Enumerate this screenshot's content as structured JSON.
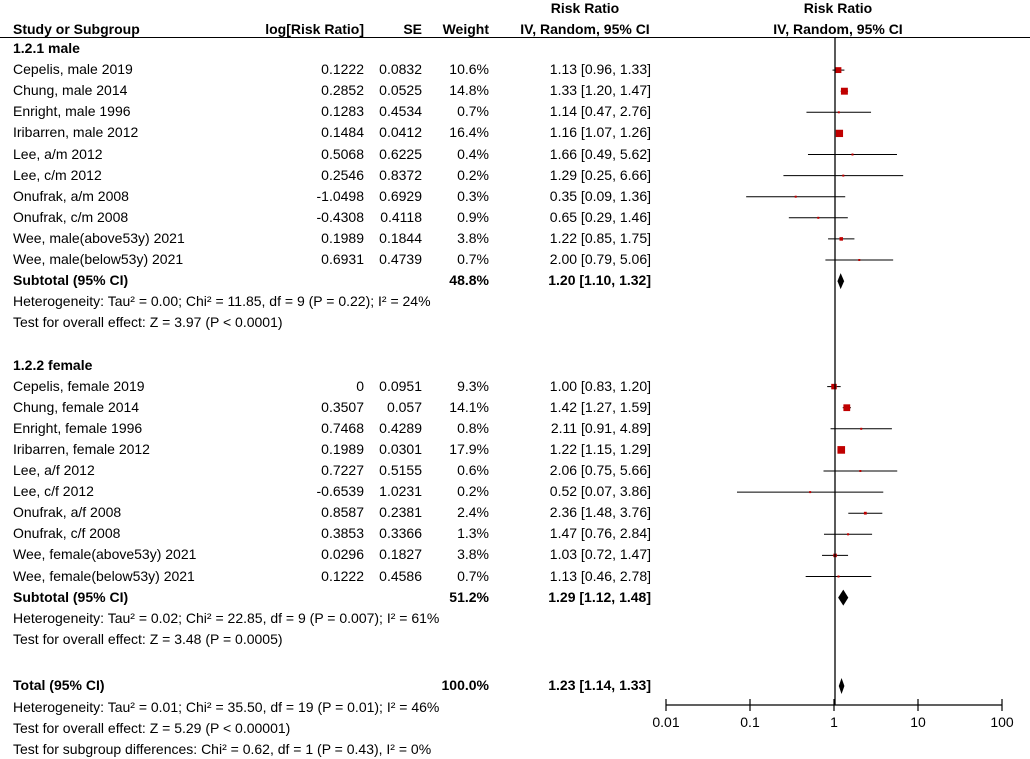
{
  "chart_data": {
    "type": "forest",
    "header": {
      "study": "Study or Subgroup",
      "logrr": "log[Risk Ratio]",
      "se": "SE",
      "weight": "Weight",
      "rr_top": "Risk Ratio",
      "rr_bottom": "IV, Random, 95% CI",
      "plot_top": "Risk Ratio",
      "plot_bottom": "IV, Random, 95% CI"
    },
    "subgroups": [
      {
        "title": "1.2.1 male",
        "studies": [
          {
            "name": "Cepelis, male 2019",
            "logrr": "0.1222",
            "se": "0.0832",
            "weight": "10.6%",
            "ci_text": "1.13 [0.96, 1.33]",
            "rr": 1.13,
            "lo": 0.96,
            "hi": 1.33,
            "w": 10.6
          },
          {
            "name": "Chung, male 2014",
            "logrr": "0.2852",
            "se": "0.0525",
            "weight": "14.8%",
            "ci_text": "1.33 [1.20, 1.47]",
            "rr": 1.33,
            "lo": 1.2,
            "hi": 1.47,
            "w": 14.8
          },
          {
            "name": "Enright, male 1996",
            "logrr": "0.1283",
            "se": "0.4534",
            "weight": "0.7%",
            "ci_text": "1.14 [0.47, 2.76]",
            "rr": 1.14,
            "lo": 0.47,
            "hi": 2.76,
            "w": 0.7
          },
          {
            "name": "Iribarren, male 2012",
            "logrr": "0.1484",
            "se": "0.0412",
            "weight": "16.4%",
            "ci_text": "1.16 [1.07, 1.26]",
            "rr": 1.16,
            "lo": 1.07,
            "hi": 1.26,
            "w": 16.4
          },
          {
            "name": "Lee, a/m 2012",
            "logrr": "0.5068",
            "se": "0.6225",
            "weight": "0.4%",
            "ci_text": "1.66 [0.49, 5.62]",
            "rr": 1.66,
            "lo": 0.49,
            "hi": 5.62,
            "w": 0.4
          },
          {
            "name": "Lee, c/m 2012",
            "logrr": "0.2546",
            "se": "0.8372",
            "weight": "0.2%",
            "ci_text": "1.29 [0.25, 6.66]",
            "rr": 1.29,
            "lo": 0.25,
            "hi": 6.66,
            "w": 0.2
          },
          {
            "name": "Onufrak, a/m 2008",
            "logrr": "-1.0498",
            "se": "0.6929",
            "weight": "0.3%",
            "ci_text": "0.35 [0.09, 1.36]",
            "rr": 0.35,
            "lo": 0.09,
            "hi": 1.36,
            "w": 0.3
          },
          {
            "name": "Onufrak, c/m 2008",
            "logrr": "-0.4308",
            "se": "0.4118",
            "weight": "0.9%",
            "ci_text": "0.65 [0.29, 1.46]",
            "rr": 0.65,
            "lo": 0.29,
            "hi": 1.46,
            "w": 0.9
          },
          {
            "name": "Wee, male(above53y) 2021",
            "logrr": "0.1989",
            "se": "0.1844",
            "weight": "3.8%",
            "ci_text": "1.22 [0.85, 1.75]",
            "rr": 1.22,
            "lo": 0.85,
            "hi": 1.75,
            "w": 3.8
          },
          {
            "name": "Wee, male(below53y) 2021",
            "logrr": "0.6931",
            "se": "0.4739",
            "weight": "0.7%",
            "ci_text": "2.00 [0.79, 5.06]",
            "rr": 2.0,
            "lo": 0.79,
            "hi": 5.06,
            "w": 0.7
          }
        ],
        "subtotal": {
          "label": "Subtotal (95% CI)",
          "weight": "48.8%",
          "ci_text": "1.20 [1.10, 1.32]",
          "rr": 1.2,
          "lo": 1.1,
          "hi": 1.32
        },
        "heterogeneity": "Heterogeneity: Tau² = 0.00; Chi² = 11.85, df = 9 (P = 0.22); I² = 24%",
        "overall_effect": "Test for overall effect: Z = 3.97 (P < 0.0001)"
      },
      {
        "title": "1.2.2 female",
        "studies": [
          {
            "name": "Cepelis, female 2019",
            "logrr": "0",
            "se": "0.0951",
            "weight": "9.3%",
            "ci_text": "1.00 [0.83, 1.20]",
            "rr": 1.0,
            "lo": 0.83,
            "hi": 1.2,
            "w": 9.3
          },
          {
            "name": "Chung, female 2014",
            "logrr": "0.3507",
            "se": "0.057",
            "weight": "14.1%",
            "ci_text": "1.42 [1.27, 1.59]",
            "rr": 1.42,
            "lo": 1.27,
            "hi": 1.59,
            "w": 14.1
          },
          {
            "name": "Enright, female 1996",
            "logrr": "0.7468",
            "se": "0.4289",
            "weight": "0.8%",
            "ci_text": "2.11 [0.91, 4.89]",
            "rr": 2.11,
            "lo": 0.91,
            "hi": 4.89,
            "w": 0.8
          },
          {
            "name": "Iribarren, female 2012",
            "logrr": "0.1989",
            "se": "0.0301",
            "weight": "17.9%",
            "ci_text": "1.22 [1.15, 1.29]",
            "rr": 1.22,
            "lo": 1.15,
            "hi": 1.29,
            "w": 17.9
          },
          {
            "name": "Lee, a/f 2012",
            "logrr": "0.7227",
            "se": "0.5155",
            "weight": "0.6%",
            "ci_text": "2.06 [0.75, 5.66]",
            "rr": 2.06,
            "lo": 0.75,
            "hi": 5.66,
            "w": 0.6
          },
          {
            "name": "Lee, c/f 2012",
            "logrr": "-0.6539",
            "se": "1.0231",
            "weight": "0.2%",
            "ci_text": "0.52 [0.07, 3.86]",
            "rr": 0.52,
            "lo": 0.07,
            "hi": 3.86,
            "w": 0.2
          },
          {
            "name": "Onufrak, a/f 2008",
            "logrr": "0.8587",
            "se": "0.2381",
            "weight": "2.4%",
            "ci_text": "2.36 [1.48, 3.76]",
            "rr": 2.36,
            "lo": 1.48,
            "hi": 3.76,
            "w": 2.4
          },
          {
            "name": "Onufrak, c/f 2008",
            "logrr": "0.3853",
            "se": "0.3366",
            "weight": "1.3%",
            "ci_text": "1.47 [0.76, 2.84]",
            "rr": 1.47,
            "lo": 0.76,
            "hi": 2.84,
            "w": 1.3
          },
          {
            "name": "Wee, female(above53y) 2021",
            "logrr": "0.0296",
            "se": "0.1827",
            "weight": "3.8%",
            "ci_text": "1.03 [0.72, 1.47]",
            "rr": 1.03,
            "lo": 0.72,
            "hi": 1.47,
            "w": 3.8
          },
          {
            "name": "Wee, female(below53y) 2021",
            "logrr": "0.1222",
            "se": "0.4586",
            "weight": "0.7%",
            "ci_text": "1.13 [0.46, 2.78]",
            "rr": 1.13,
            "lo": 0.46,
            "hi": 2.78,
            "w": 0.7
          }
        ],
        "subtotal": {
          "label": "Subtotal (95% CI)",
          "weight": "51.2%",
          "ci_text": "1.29 [1.12, 1.48]",
          "rr": 1.29,
          "lo": 1.12,
          "hi": 1.48
        },
        "heterogeneity": "Heterogeneity: Tau² = 0.02; Chi² = 22.85, df = 9 (P = 0.007); I² = 61%",
        "overall_effect": "Test for overall effect: Z = 3.48 (P = 0.0005)"
      }
    ],
    "total": {
      "label": "Total (95% CI)",
      "weight": "100.0%",
      "ci_text": "1.23 [1.14, 1.33]",
      "rr": 1.23,
      "lo": 1.14,
      "hi": 1.33
    },
    "total_heterogeneity": "Heterogeneity: Tau² = 0.01; Chi² = 35.50, df = 19 (P = 0.01); I² = 46%",
    "total_overall_effect": "Test for overall effect: Z = 5.29 (P < 0.00001)",
    "subgroup_differences": "Test for subgroup differences: Chi² = 0.62, df = 1 (P = 0.43), I² = 0%",
    "x_axis": {
      "scale": "log",
      "range": [
        0.01,
        100
      ],
      "ticks": [
        0.01,
        0.1,
        1,
        10,
        100
      ],
      "tick_labels": [
        "0.01",
        "0.1",
        "1",
        "10",
        "100"
      ]
    },
    "colors": {
      "square": "#c00000",
      "diamond": "#000000",
      "line": "#000000"
    }
  }
}
